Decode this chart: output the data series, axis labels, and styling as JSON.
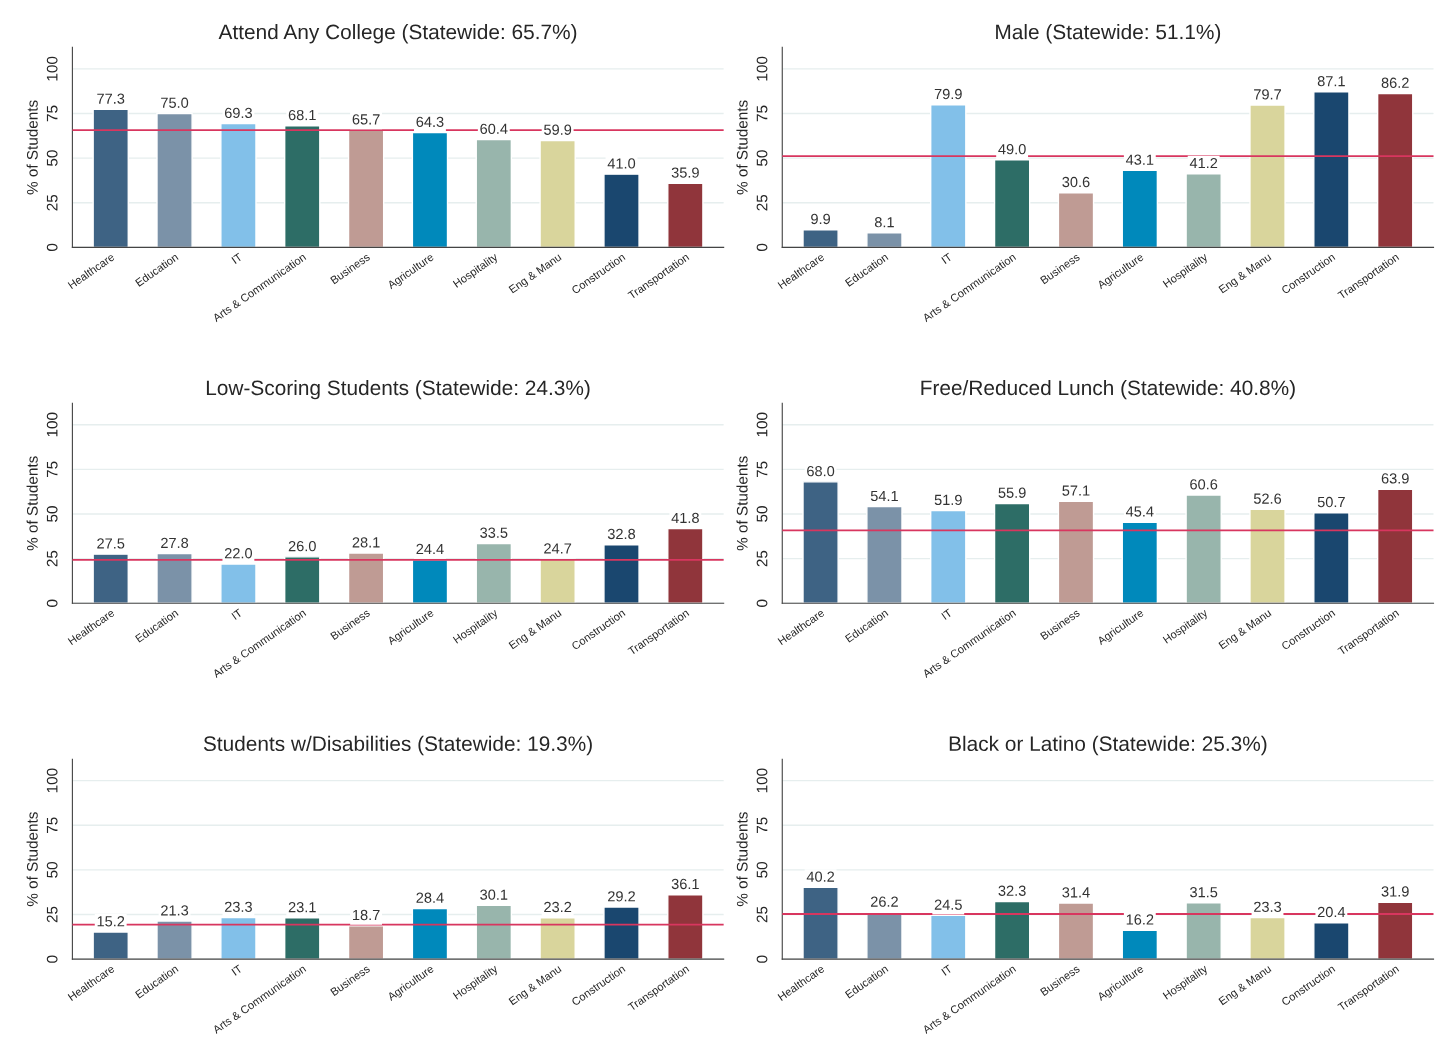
{
  "chart_data": [
    {
      "type": "bar",
      "title": "Attend Any College (Statewide: 65.7%)",
      "ylabel": "% of Students",
      "categories": [
        "Healthcare",
        "Education",
        "IT",
        "Arts & Communication",
        "Business",
        "Agriculture",
        "Hospitality",
        "Eng & Manu",
        "Construction",
        "Transportation"
      ],
      "values": [
        77.3,
        75.0,
        69.3,
        68.1,
        65.7,
        64.3,
        60.4,
        59.9,
        41.0,
        35.9
      ],
      "value_labels": [
        "77.3",
        "75.0",
        "69.3",
        "68.1",
        "65.7",
        "64.3",
        "60.4",
        "59.9",
        "41.0",
        "35.9"
      ],
      "colors": [
        "#3e6384",
        "#7b92a8",
        "#82c0e9",
        "#2d6d66",
        "#bf9b94",
        "#0089bb",
        "#98b5ac",
        "#d9d59c",
        "#1a476f",
        "#90353b"
      ],
      "ylim": [
        0,
        112
      ],
      "yticks": [
        0,
        25,
        50,
        75,
        100
      ],
      "grid": "y",
      "ref_lines": [
        {
          "axis": "y",
          "value": 65.7,
          "color": "#d8365f"
        }
      ]
    },
    {
      "type": "bar",
      "title": "Male (Statewide: 51.1%)",
      "ylabel": "% of Students",
      "categories": [
        "Healthcare",
        "Education",
        "IT",
        "Arts & Communication",
        "Business",
        "Agriculture",
        "Hospitality",
        "Eng & Manu",
        "Construction",
        "Transportation"
      ],
      "values": [
        9.9,
        8.1,
        79.9,
        49.0,
        30.6,
        43.1,
        41.2,
        79.7,
        87.1,
        86.2
      ],
      "value_labels": [
        "9.9",
        "8.1",
        "79.9",
        "49.0",
        "30.6",
        "43.1",
        "41.2",
        "79.7",
        "87.1",
        "86.2"
      ],
      "colors": [
        "#3e6384",
        "#7b92a8",
        "#82c0e9",
        "#2d6d66",
        "#bf9b94",
        "#0089bb",
        "#98b5ac",
        "#d9d59c",
        "#1a476f",
        "#90353b"
      ],
      "ylim": [
        0,
        112
      ],
      "yticks": [
        0,
        25,
        50,
        75,
        100
      ],
      "grid": "y",
      "ref_lines": [
        {
          "axis": "y",
          "value": 51.1,
          "color": "#d8365f"
        }
      ]
    },
    {
      "type": "bar",
      "title": "Low-Scoring Students (Statewide: 24.3%)",
      "ylabel": "% of Students",
      "categories": [
        "Healthcare",
        "Education",
        "IT",
        "Arts & Communication",
        "Business",
        "Agriculture",
        "Hospitality",
        "Eng & Manu",
        "Construction",
        "Transportation"
      ],
      "values": [
        27.5,
        27.8,
        22.0,
        26.0,
        28.1,
        24.4,
        33.5,
        24.7,
        32.8,
        41.8
      ],
      "value_labels": [
        "27.5",
        "27.8",
        "22.0",
        "26.0",
        "28.1",
        "24.4",
        "33.5",
        "24.7",
        "32.8",
        "41.8"
      ],
      "colors": [
        "#3e6384",
        "#7b92a8",
        "#82c0e9",
        "#2d6d66",
        "#bf9b94",
        "#0089bb",
        "#98b5ac",
        "#d9d59c",
        "#1a476f",
        "#90353b"
      ],
      "ylim": [
        0,
        112
      ],
      "yticks": [
        0,
        25,
        50,
        75,
        100
      ],
      "grid": "y",
      "ref_lines": [
        {
          "axis": "y",
          "value": 24.3,
          "color": "#d8365f"
        }
      ]
    },
    {
      "type": "bar",
      "title": "Free/Reduced Lunch (Statewide: 40.8%)",
      "ylabel": "% of Students",
      "categories": [
        "Healthcare",
        "Education",
        "IT",
        "Arts & Communication",
        "Business",
        "Agriculture",
        "Hospitality",
        "Eng & Manu",
        "Construction",
        "Transportation"
      ],
      "values": [
        68.0,
        54.1,
        51.9,
        55.9,
        57.1,
        45.4,
        60.6,
        52.6,
        50.7,
        63.9
      ],
      "value_labels": [
        "68.0",
        "54.1",
        "51.9",
        "55.9",
        "57.1",
        "45.4",
        "60.6",
        "52.6",
        "50.7",
        "63.9"
      ],
      "colors": [
        "#3e6384",
        "#7b92a8",
        "#82c0e9",
        "#2d6d66",
        "#bf9b94",
        "#0089bb",
        "#98b5ac",
        "#d9d59c",
        "#1a476f",
        "#90353b"
      ],
      "ylim": [
        0,
        112
      ],
      "yticks": [
        0,
        25,
        50,
        75,
        100
      ],
      "grid": "y",
      "ref_lines": [
        {
          "axis": "y",
          "value": 40.8,
          "color": "#d8365f"
        }
      ]
    },
    {
      "type": "bar",
      "title": "Students w/Disabilities (Statewide: 19.3%)",
      "ylabel": "% of Students",
      "categories": [
        "Healthcare",
        "Education",
        "IT",
        "Arts & Communication",
        "Business",
        "Agriculture",
        "Hospitality",
        "Eng & Manu",
        "Construction",
        "Transportation"
      ],
      "values": [
        15.2,
        21.3,
        23.3,
        23.1,
        18.7,
        28.4,
        30.1,
        23.2,
        29.2,
        36.1
      ],
      "value_labels": [
        "15.2",
        "21.3",
        "23.3",
        "23.1",
        "18.7",
        "28.4",
        "30.1",
        "23.2",
        "29.2",
        "36.1"
      ],
      "colors": [
        "#3e6384",
        "#7b92a8",
        "#82c0e9",
        "#2d6d66",
        "#bf9b94",
        "#0089bb",
        "#98b5ac",
        "#d9d59c",
        "#1a476f",
        "#90353b"
      ],
      "ylim": [
        0,
        112
      ],
      "yticks": [
        0,
        25,
        50,
        75,
        100
      ],
      "grid": "y",
      "ref_lines": [
        {
          "axis": "y",
          "value": 19.3,
          "color": "#d8365f"
        }
      ]
    },
    {
      "type": "bar",
      "title": "Black or Latino (Statewide: 25.3%)",
      "ylabel": "% of Students",
      "categories": [
        "Healthcare",
        "Education",
        "IT",
        "Arts & Communication",
        "Business",
        "Agriculture",
        "Hospitality",
        "Eng & Manu",
        "Construction",
        "Transportation"
      ],
      "values": [
        40.2,
        26.2,
        24.5,
        32.3,
        31.4,
        16.2,
        31.5,
        23.3,
        20.4,
        31.9
      ],
      "value_labels": [
        "40.2",
        "26.2",
        "24.5",
        "32.3",
        "31.4",
        "16.2",
        "31.5",
        "23.3",
        "20.4",
        "31.9"
      ],
      "colors": [
        "#3e6384",
        "#7b92a8",
        "#82c0e9",
        "#2d6d66",
        "#bf9b94",
        "#0089bb",
        "#98b5ac",
        "#d9d59c",
        "#1a476f",
        "#90353b"
      ],
      "ylim": [
        0,
        112
      ],
      "yticks": [
        0,
        25,
        50,
        75,
        100
      ],
      "grid": "y",
      "ref_lines": [
        {
          "axis": "y",
          "value": 25.3,
          "color": "#d8365f"
        }
      ]
    }
  ]
}
